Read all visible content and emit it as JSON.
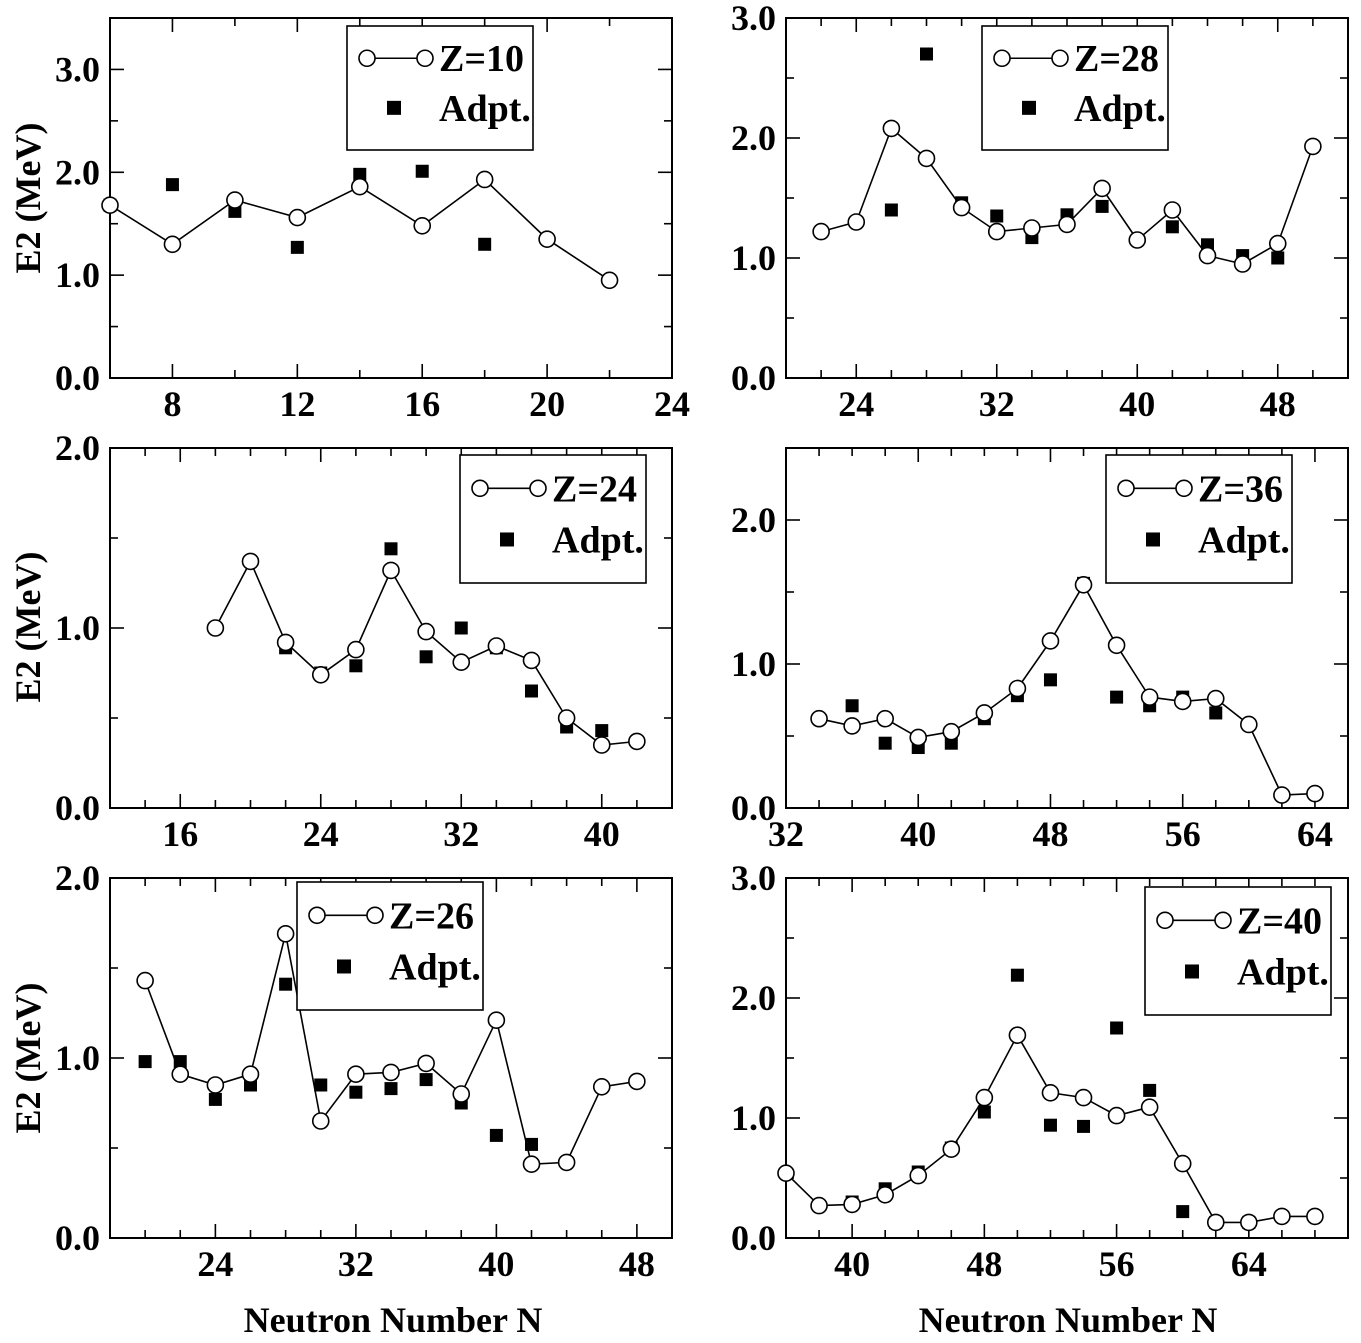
{
  "figure": {
    "ylabel": "E2 (MeV)",
    "xlabel": "Neutron Number N"
  },
  "chart_data": [
    {
      "type": "line",
      "panel": "top-left",
      "legend": {
        "line_label": "Z=10",
        "marker_label": "Adpt.",
        "placement": "top-right"
      },
      "xlim": [
        6,
        24
      ],
      "ylim": [
        0,
        3.5
      ],
      "xticks": [
        8,
        12,
        16,
        20,
        24
      ],
      "yticks": [
        0,
        1,
        2,
        3
      ],
      "xticklabels": [
        "8",
        "12",
        "16",
        "20",
        "24"
      ],
      "yticklabels": [
        "0.0",
        "1.0",
        "2.0",
        "3.0"
      ],
      "series": [
        {
          "name": "Z=10",
          "style": "open-circle-line",
          "x": [
            6,
            8,
            10,
            12,
            14,
            16,
            18,
            20,
            22
          ],
          "y": [
            1.68,
            1.3,
            1.73,
            1.56,
            1.86,
            1.48,
            1.93,
            1.35,
            0.95
          ]
        },
        {
          "name": "Adpt.",
          "style": "filled-square",
          "x": [
            6,
            8,
            10,
            12,
            14,
            16,
            18
          ],
          "y": [
            1.68,
            1.88,
            1.62,
            1.27,
            1.98,
            2.01,
            1.3
          ]
        }
      ]
    },
    {
      "type": "line",
      "panel": "top-right",
      "legend": {
        "line_label": "Z=28",
        "marker_label": "Adpt.",
        "placement": "top-right"
      },
      "xlim": [
        20,
        52
      ],
      "ylim": [
        0,
        3
      ],
      "xticks": [
        24,
        32,
        40,
        48
      ],
      "yticks": [
        0,
        1,
        2,
        3
      ],
      "xticklabels": [
        "24",
        "32",
        "40",
        "48"
      ],
      "yticklabels": [
        "0.0",
        "1.0",
        "2.0",
        "3.0"
      ],
      "series": [
        {
          "name": "Z=28",
          "style": "open-circle-line",
          "x": [
            22,
            24,
            26,
            28,
            30,
            32,
            34,
            36,
            38,
            40,
            42,
            44,
            46,
            48,
            50
          ],
          "y": [
            1.22,
            1.3,
            2.08,
            1.83,
            1.42,
            1.22,
            1.25,
            1.28,
            1.58,
            1.15,
            1.4,
            1.02,
            0.95,
            1.12,
            1.93
          ]
        },
        {
          "name": "Adpt.",
          "style": "filled-square",
          "x": [
            26,
            28,
            30,
            32,
            34,
            36,
            38,
            42,
            44,
            46,
            48
          ],
          "y": [
            1.4,
            2.7,
            1.46,
            1.35,
            1.17,
            1.36,
            1.43,
            1.26,
            1.11,
            1.02,
            1.0
          ]
        }
      ]
    },
    {
      "type": "line",
      "panel": "middle-left",
      "legend": {
        "line_label": "Z=24",
        "marker_label": "Adpt.",
        "placement": "top-right"
      },
      "xlim": [
        12,
        44
      ],
      "ylim": [
        0,
        2
      ],
      "xticks": [
        16,
        24,
        32,
        40
      ],
      "yticks": [
        0,
        1,
        2
      ],
      "xticklabels": [
        "16",
        "24",
        "32",
        "40"
      ],
      "yticklabels": [
        "0.0",
        "1.0",
        "2.0"
      ],
      "series": [
        {
          "name": "Z=24",
          "style": "open-circle-line",
          "x": [
            18,
            20,
            22,
            24,
            26,
            28,
            30,
            32,
            34,
            36,
            38,
            40,
            42
          ],
          "y": [
            1.0,
            1.37,
            0.92,
            0.74,
            0.88,
            1.32,
            0.98,
            0.81,
            0.9,
            0.82,
            0.5,
            0.35,
            0.37
          ]
        },
        {
          "name": "Adpt.",
          "style": "filled-square",
          "x": [
            22,
            24,
            26,
            28,
            30,
            32,
            34,
            36,
            38,
            40
          ],
          "y": [
            0.89,
            0.75,
            0.79,
            1.44,
            0.84,
            1.0,
            0.89,
            0.65,
            0.45,
            0.43
          ]
        }
      ]
    },
    {
      "type": "line",
      "panel": "middle-right",
      "legend": {
        "line_label": "Z=36",
        "marker_label": "Adpt.",
        "placement": "top-right"
      },
      "xlim": [
        32,
        66
      ],
      "ylim": [
        0,
        2.5
      ],
      "xticks": [
        32,
        40,
        48,
        56,
        64
      ],
      "yticks": [
        0,
        1,
        2
      ],
      "xticklabels": [
        "32",
        "40",
        "48",
        "56",
        "64"
      ],
      "yticklabels": [
        "0.0",
        "1.0",
        "2.0"
      ],
      "series": [
        {
          "name": "Z=36",
          "style": "open-circle-line",
          "x": [
            34,
            36,
            38,
            40,
            42,
            44,
            46,
            48,
            50,
            52,
            54,
            56,
            58,
            60,
            62,
            64
          ],
          "y": [
            0.62,
            0.57,
            0.62,
            0.49,
            0.53,
            0.66,
            0.83,
            1.16,
            1.55,
            1.13,
            0.77,
            0.74,
            0.76,
            0.58,
            0.09,
            0.1
          ]
        },
        {
          "name": "Adpt.",
          "style": "filled-square",
          "x": [
            36,
            38,
            40,
            42,
            44,
            46,
            48,
            50,
            52,
            54,
            56,
            58
          ],
          "y": [
            0.71,
            0.45,
            0.42,
            0.45,
            0.62,
            0.78,
            0.89,
            1.56,
            0.77,
            0.71,
            0.77,
            0.66
          ]
        }
      ]
    },
    {
      "type": "line",
      "panel": "bottom-left",
      "legend": {
        "line_label": "Z=26",
        "marker_label": "Adpt.",
        "placement": "top-center"
      },
      "xlim": [
        18,
        50
      ],
      "ylim": [
        0,
        2
      ],
      "xticks": [
        24,
        32,
        40,
        48
      ],
      "yticks": [
        0,
        1,
        2
      ],
      "xticklabels": [
        "24",
        "32",
        "40",
        "48"
      ],
      "yticklabels": [
        "0.0",
        "1.0",
        "2.0"
      ],
      "series": [
        {
          "name": "Z=26",
          "style": "open-circle-line",
          "x": [
            20,
            22,
            24,
            26,
            28,
            30,
            32,
            34,
            36,
            38,
            40,
            42,
            44,
            46,
            48
          ],
          "y": [
            1.43,
            0.91,
            0.85,
            0.91,
            1.69,
            0.65,
            0.91,
            0.92,
            0.97,
            0.8,
            1.21,
            0.41,
            0.42,
            0.84,
            0.87
          ]
        },
        {
          "name": "Adpt.",
          "style": "filled-square",
          "x": [
            20,
            22,
            24,
            26,
            28,
            30,
            32,
            34,
            36,
            38,
            40,
            42
          ],
          "y": [
            0.98,
            0.98,
            0.77,
            0.85,
            1.41,
            0.85,
            0.81,
            0.83,
            0.88,
            0.75,
            0.57,
            0.52
          ]
        }
      ]
    },
    {
      "type": "line",
      "panel": "bottom-right",
      "legend": {
        "line_label": "Z=40",
        "marker_label": "Adpt.",
        "placement": "top-right"
      },
      "xlim": [
        36,
        70
      ],
      "ylim": [
        0,
        3
      ],
      "xticks": [
        40,
        48,
        56,
        64
      ],
      "yticks": [
        0,
        1,
        2,
        3
      ],
      "xticklabels": [
        "40",
        "48",
        "56",
        "64"
      ],
      "yticklabels": [
        "0.0",
        "1.0",
        "2.0",
        "3.0"
      ],
      "series": [
        {
          "name": "Z=40",
          "style": "open-circle-line",
          "x": [
            36,
            38,
            40,
            42,
            44,
            46,
            48,
            50,
            52,
            54,
            56,
            58,
            60,
            62,
            64,
            66,
            68
          ],
          "y": [
            0.54,
            0.27,
            0.28,
            0.36,
            0.52,
            0.74,
            1.17,
            1.69,
            1.21,
            1.17,
            1.02,
            1.09,
            0.62,
            0.13,
            0.13,
            0.18,
            0.18
          ]
        },
        {
          "name": "Adpt.",
          "style": "filled-square",
          "x": [
            40,
            42,
            44,
            46,
            48,
            50,
            52,
            54,
            56,
            58,
            60,
            62,
            64
          ],
          "y": [
            0.3,
            0.41,
            0.55,
            0.75,
            1.05,
            2.19,
            0.94,
            0.93,
            1.75,
            1.23,
            0.22,
            0.13,
            0.13
          ]
        }
      ]
    }
  ]
}
